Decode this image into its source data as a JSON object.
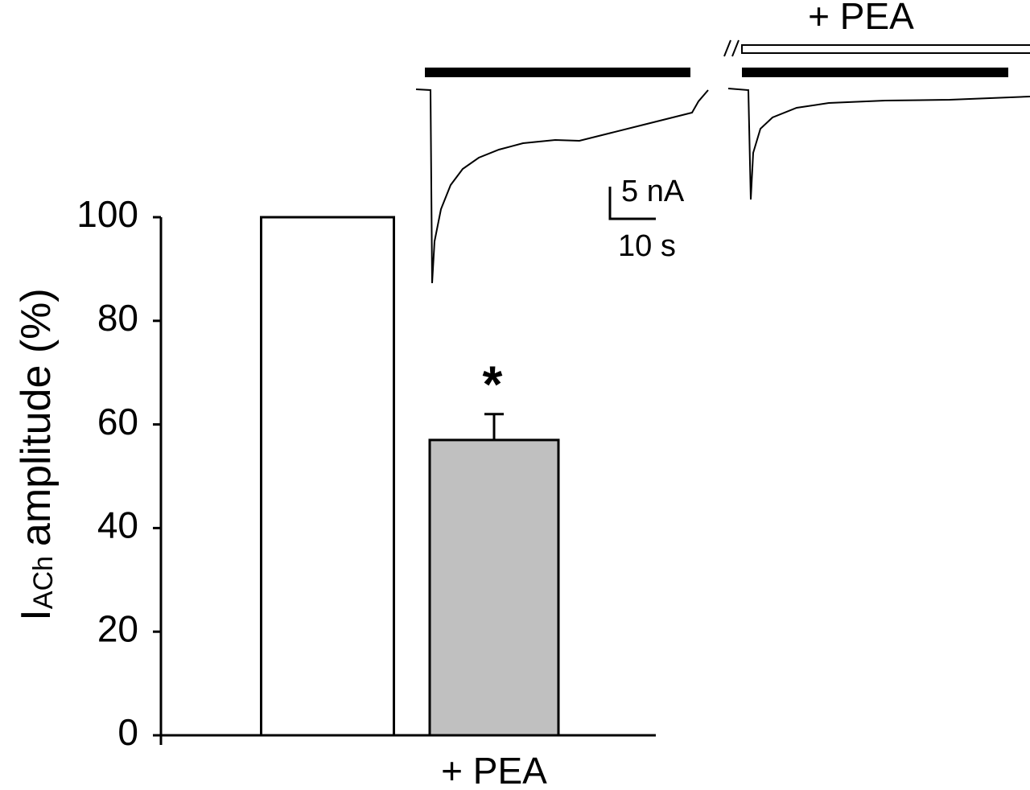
{
  "chart_data": {
    "type": "bar",
    "y_label": {
      "main": "I",
      "sub": "ACh",
      "rest": "amplitude (%)"
    },
    "categories": [
      null,
      "+ PEA"
    ],
    "values": [
      100,
      57
    ],
    "errors": [
      null,
      5
    ],
    "value_annotations": [
      null,
      "*"
    ],
    "colors": [
      "#ffffff",
      "#c0c0c0"
    ],
    "ylim": [
      0,
      100
    ],
    "yticks": [
      0,
      20,
      40,
      60,
      80,
      100
    ],
    "grid": false
  },
  "inset": {
    "treatment_label": "+ PEA",
    "scale_current": "5 nA",
    "scale_time": "10 s"
  }
}
